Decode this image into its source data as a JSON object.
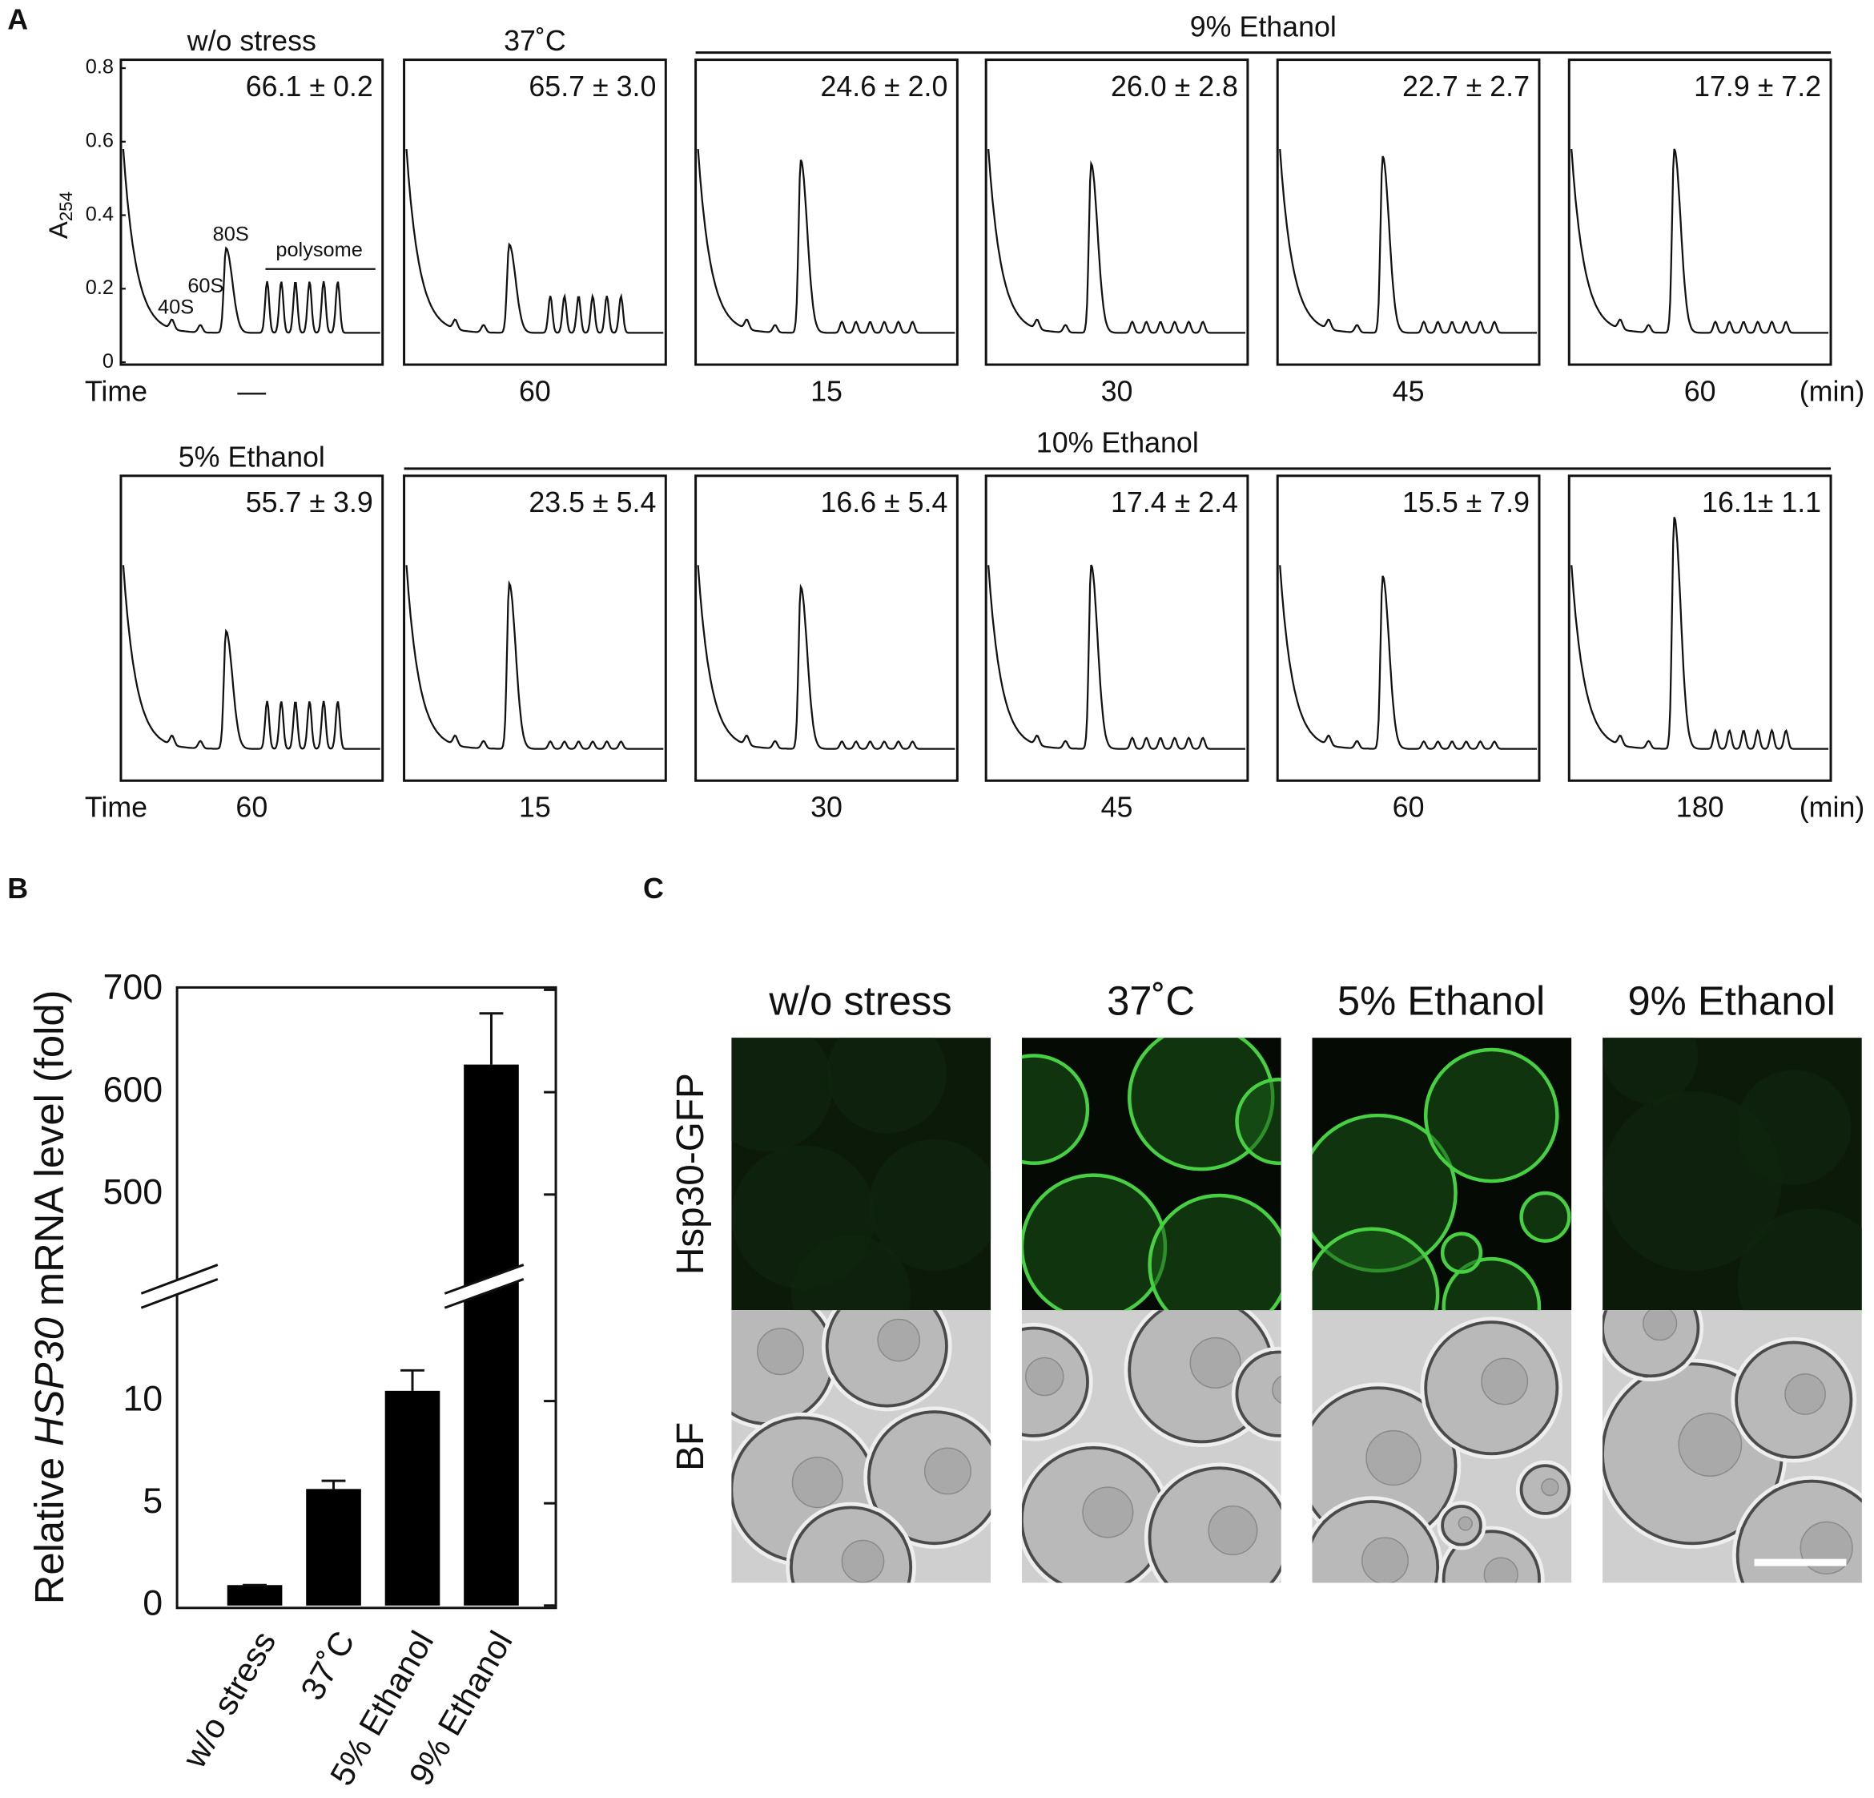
{
  "panel_labels": {
    "a": "A",
    "b": "B",
    "c": "C"
  },
  "panel_a": {
    "ylabel": "A",
    "ylabel_sub": "254",
    "ylim": [
      0,
      0.8
    ],
    "yticks": [
      0,
      0.2,
      0.4,
      0.6,
      0.8
    ],
    "time_label": "Time",
    "unit_label": "(min)",
    "peak_labels": [
      "40S",
      "60S",
      "80S",
      "polysome"
    ],
    "rows": [
      {
        "groups": [
          {
            "label": "w/o stress",
            "profiles": [
              {
                "time": "—",
                "value_text": "66.1 ± 0.2",
                "peak_80s": 0.31,
                "polysome": 0.23
              }
            ]
          },
          {
            "label": "37˚C",
            "profiles": [
              {
                "time": 60,
                "value_text": "65.7 ± 3.0",
                "peak_80s": 0.32,
                "polysome": 0.19
              }
            ]
          },
          {
            "label": "9% Ethanol",
            "profiles": [
              {
                "time": 15,
                "value_text": "24.6 ± 2.0",
                "peak_80s": 0.55,
                "polysome": 0.12
              },
              {
                "time": 30,
                "value_text": "26.0 ± 2.8",
                "peak_80s": 0.54,
                "polysome": 0.12
              },
              {
                "time": 45,
                "value_text": "22.7 ± 2.7",
                "peak_80s": 0.56,
                "polysome": 0.12
              },
              {
                "time": 60,
                "value_text": "17.9 ± 7.2",
                "peak_80s": 0.58,
                "polysome": 0.12
              }
            ]
          }
        ]
      },
      {
        "groups": [
          {
            "label": "5% Ethanol",
            "profiles": [
              {
                "time": 60,
                "value_text": "55.7 ± 3.9",
                "peak_80s": 0.4,
                "polysome": 0.22
              }
            ]
          },
          {
            "label": "10% Ethanol",
            "profiles": [
              {
                "time": 15,
                "value_text": "23.5 ± 5.4",
                "peak_80s": 0.53,
                "polysome": 0.11
              },
              {
                "time": 30,
                "value_text": "16.6 ± 5.4",
                "peak_80s": 0.52,
                "polysome": 0.11
              },
              {
                "time": 45,
                "value_text": "17.4 ± 2.4",
                "peak_80s": 0.58,
                "polysome": 0.12
              },
              {
                "time": 60,
                "value_text": "15.5 ± 7.9",
                "peak_80s": 0.55,
                "polysome": 0.11
              },
              {
                "time": 180,
                "value_text": "16.1± 1.1",
                "peak_80s": 0.71,
                "polysome": 0.14
              }
            ]
          }
        ]
      }
    ]
  },
  "chart_data": {
    "type": "bar",
    "y_label": [
      "Relative ",
      "HSP30",
      " mRNA level (fold)"
    ],
    "categories": [
      "w/o stress",
      "37˚C",
      "5% Ethanol",
      "9% Ethanol"
    ],
    "values": [
      1.0,
      5.7,
      10.5,
      627
    ],
    "errors": [
      0,
      0.4,
      1.0,
      50
    ],
    "color": "#000000",
    "axis_break": true,
    "ylim_lower": [
      0,
      14.5
    ],
    "ylim_upper": [
      450,
      700
    ],
    "yticks": [
      0,
      5,
      10,
      500,
      600,
      700
    ]
  },
  "panel_c": {
    "titles": [
      "w/o stress",
      "37˚C",
      "5% Ethanol",
      "9% Ethanol"
    ],
    "row_labels": [
      "Hsp30-GFP",
      "BF"
    ]
  }
}
